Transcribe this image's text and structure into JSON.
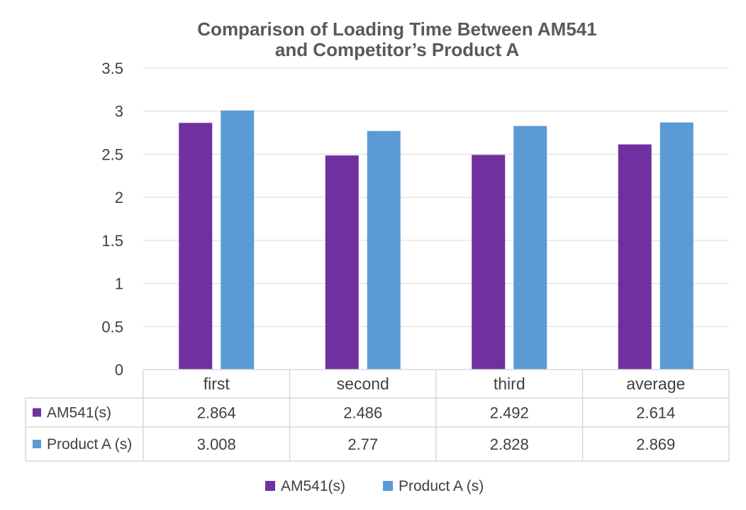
{
  "chart_data": {
    "type": "bar",
    "title_lines": [
      "Comparison of Loading Time Between AM541",
      "and Competitor’s Product A"
    ],
    "categories": [
      "first",
      "second",
      "third",
      "average"
    ],
    "series": [
      {
        "name": "AM541(s)",
        "values": [
          2.864,
          2.486,
          2.492,
          2.614
        ],
        "labels": [
          "2.864",
          "2.486",
          "2.492",
          "2.614"
        ],
        "color": "#7030A0"
      },
      {
        "name": "Product A (s)",
        "values": [
          3.008,
          2.77,
          2.828,
          2.869
        ],
        "labels": [
          "3.008",
          "2.77",
          "2.828",
          "2.869"
        ],
        "color": "#5B9BD5"
      }
    ],
    "ylim": [
      0,
      3.5
    ],
    "yticks": [
      "0",
      "0.5",
      "1",
      "1.5",
      "2",
      "2.5",
      "3",
      "3.5"
    ],
    "grid": true,
    "data_table": true,
    "legend": "bottom"
  },
  "colors": {
    "grid": "#d9d9d9",
    "table_border": "#d9d9d9",
    "text": "#404040",
    "title": "#595959"
  }
}
